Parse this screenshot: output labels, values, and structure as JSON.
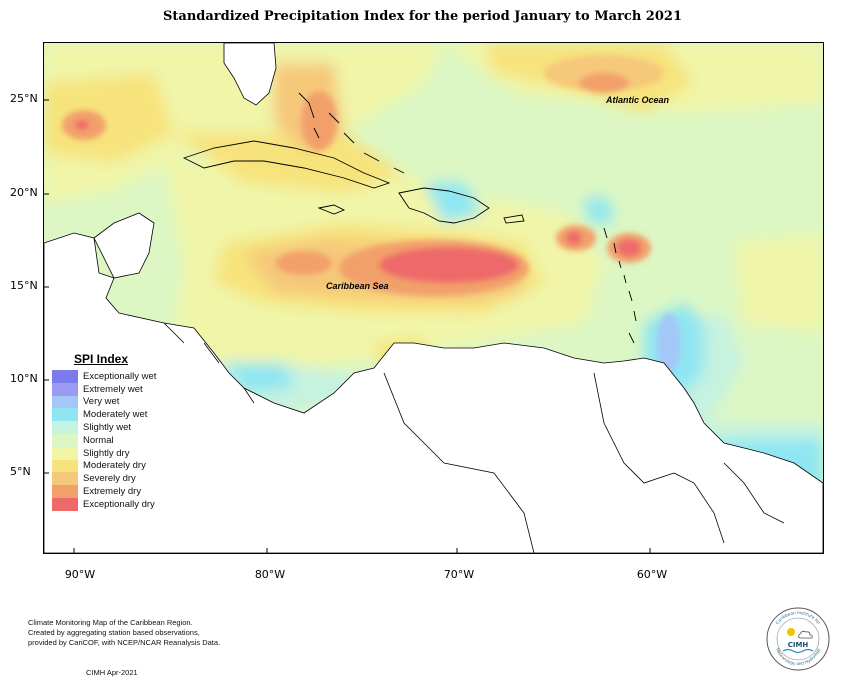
{
  "title": "Standardized Precipitation Index for the period January to March 2021",
  "map": {
    "latitude_labels": [
      "25°N",
      "20°N",
      "15°N",
      "10°N",
      "5°N"
    ],
    "longitude_labels": [
      "90°W",
      "80°W",
      "70°W",
      "60°W"
    ],
    "places": {
      "atlantic": "Atlantic Ocean",
      "caribbean": "Caribbean Sea"
    }
  },
  "legend": {
    "title": "SPI Index",
    "items": [
      {
        "label": "Exceptionally wet",
        "color": "#7b7bee"
      },
      {
        "label": "Extremely wet",
        "color": "#9a9af2"
      },
      {
        "label": "Very wet",
        "color": "#a3c8f7"
      },
      {
        "label": "Moderately wet",
        "color": "#8fe6f2"
      },
      {
        "label": "Slightly wet",
        "color": "#c6f2e0"
      },
      {
        "label": "Normal",
        "color": "#dcf7c4"
      },
      {
        "label": "Slightly dry",
        "color": "#f0f5a8"
      },
      {
        "label": "Moderately dry",
        "color": "#f7e37c"
      },
      {
        "label": "Severely dry",
        "color": "#f6c87a"
      },
      {
        "label": "Extremely dry",
        "color": "#f2a06a"
      },
      {
        "label": "Exceptionally dry",
        "color": "#ee6a6a"
      }
    ]
  },
  "footer": {
    "line1": "Climate Monitoring Map of the Caribbean Region.",
    "line2": "Created by aggregating station based observations,",
    "line3": "provided by CariCOF, with NCEP/NCAR Reanalysis Data.",
    "date": "CIMH Apr-2021"
  },
  "logo": {
    "acronym": "CIMH",
    "ring_text_top": "Caribbean Institute for",
    "ring_text_bottom": "Meteorology and Hydrology"
  }
}
